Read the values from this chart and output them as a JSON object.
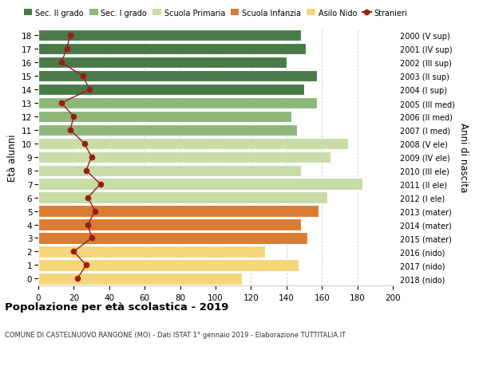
{
  "ages": [
    0,
    1,
    2,
    3,
    4,
    5,
    6,
    7,
    8,
    9,
    10,
    11,
    12,
    13,
    14,
    15,
    16,
    17,
    18
  ],
  "bar_values": [
    115,
    147,
    128,
    152,
    148,
    158,
    163,
    183,
    148,
    165,
    175,
    146,
    143,
    157,
    150,
    157,
    140,
    151,
    148
  ],
  "stranieri": [
    22,
    27,
    20,
    30,
    28,
    32,
    28,
    35,
    27,
    30,
    26,
    18,
    20,
    13,
    29,
    25,
    13,
    16,
    18
  ],
  "right_labels": [
    "2018 (nido)",
    "2017 (nido)",
    "2016 (nido)",
    "2015 (mater)",
    "2014 (mater)",
    "2013 (mater)",
    "2012 (I ele)",
    "2011 (II ele)",
    "2010 (III ele)",
    "2009 (IV ele)",
    "2008 (V ele)",
    "2007 (I med)",
    "2006 (II med)",
    "2005 (III med)",
    "2004 (I sup)",
    "2003 (II sup)",
    "2002 (III sup)",
    "2001 (IV sup)",
    "2000 (V sup)"
  ],
  "bar_colors": [
    "#f5d67a",
    "#f5d67a",
    "#f5d67a",
    "#d97d34",
    "#d97d34",
    "#d97d34",
    "#c8dca8",
    "#c8dca8",
    "#c8dca8",
    "#c8dca8",
    "#c8dca8",
    "#8db87a",
    "#8db87a",
    "#8db87a",
    "#4a7a4a",
    "#4a7a4a",
    "#4a7a4a",
    "#4a7a4a",
    "#4a7a4a"
  ],
  "legend_labels": [
    "Sec. II grado",
    "Sec. I grado",
    "Scuola Primaria",
    "Scuola Infanzia",
    "Asilo Nido",
    "Stranieri"
  ],
  "legend_colors": [
    "#4a7a4a",
    "#8db87a",
    "#c8dca8",
    "#d97d34",
    "#f5d67a",
    "#9b1c1c"
  ],
  "ylabel_left": "Età alunni",
  "ylabel_right": "Anni di nascita",
  "title": "Popolazione per età scolastica - 2019",
  "subtitle": "COMUNE DI CASTELNUOVO RANGONE (MO) - Dati ISTAT 1° gennaio 2019 - Elaborazione TUTTITALIA.IT",
  "xlim": [
    0,
    200
  ],
  "xticks": [
    0,
    20,
    40,
    60,
    80,
    100,
    120,
    140,
    160,
    180,
    200
  ],
  "grid_color": "#cccccc",
  "stranieri_line_color": "#9b1c1c",
  "stranieri_marker_color": "#9b1c1c"
}
